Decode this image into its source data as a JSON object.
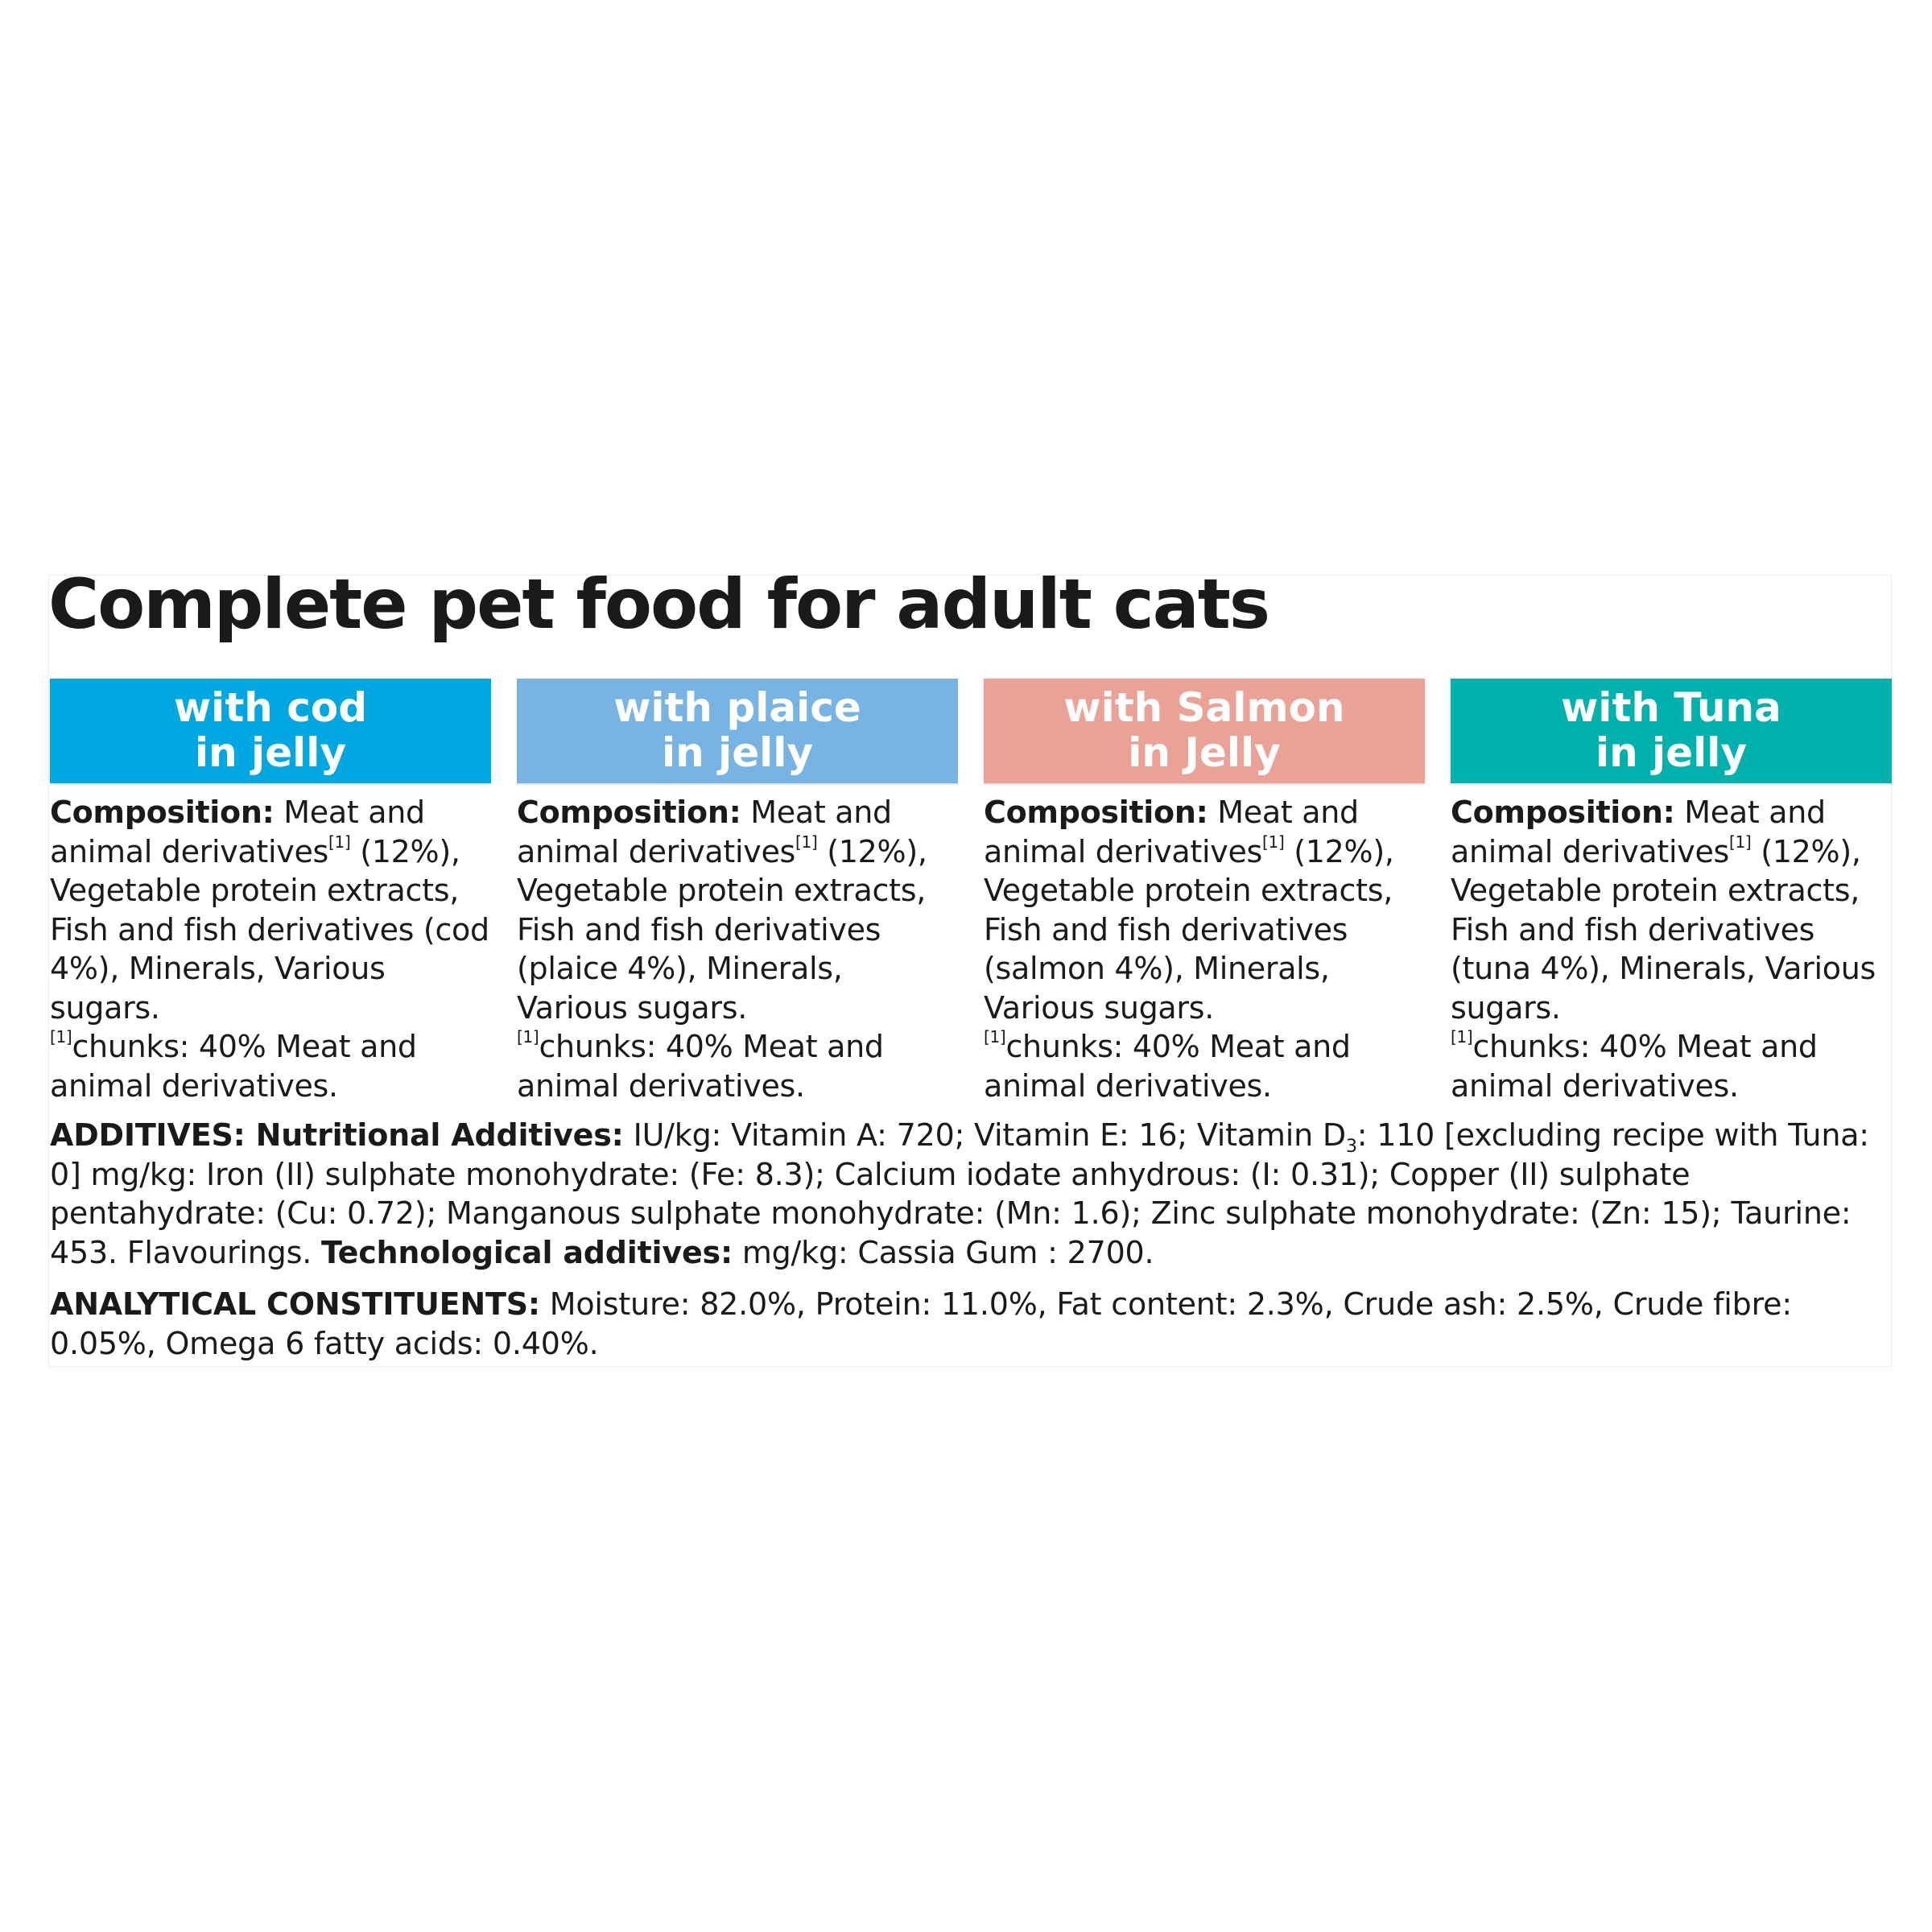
{
  "title": "Complete pet food for adult cats",
  "variants": [
    {
      "banner_line1": "with cod",
      "banner_line2": "in jelly",
      "color": "#00a7e0",
      "composition_label": "Composition:",
      "text_a": " Meat and animal derivatives",
      "footnote_ref": "[1]",
      "text_b": " (12%), Vegetable protein extracts, Fish and fish derivatives (cod 4%), Minerals, Various sugars.",
      "footnote_mark": "[1]",
      "footnote_text": "chunks: 40% Meat and animal derivatives."
    },
    {
      "banner_line1": "with plaice",
      "banner_line2": "in jelly",
      "color": "#77b4e3",
      "composition_label": "Composition:",
      "text_a": " Meat and animal derivatives",
      "footnote_ref": "[1]",
      "text_b": " (12%), Vegetable protein extracts, Fish and fish derivatives (plaice 4%), Minerals, Various sugars.",
      "footnote_mark": "[1]",
      "footnote_text": "chunks: 40% Meat and animal derivatives."
    },
    {
      "banner_line1": "with Salmon",
      "banner_line2": "in Jelly",
      "color": "#eaa196",
      "composition_label": "Composition:",
      "text_a": " Meat and animal derivatives",
      "footnote_ref": "[1]",
      "text_b": " (12%), Vegetable protein extracts, Fish and fish derivatives (salmon 4%), Minerals, Various sugars.",
      "footnote_mark": "[1]",
      "footnote_text": "chunks: 40% Meat and animal derivatives."
    },
    {
      "banner_line1": "with Tuna",
      "banner_line2": "in jelly",
      "color": "#00b1ad",
      "composition_label": "Composition:",
      "text_a": " Meat and animal derivatives",
      "footnote_ref": "[1]",
      "text_b": " (12%), Vegetable protein extracts, Fish and fish derivatives (tuna 4%), Minerals, Various sugars.",
      "footnote_mark": "[1]",
      "footnote_text": "chunks: 40% Meat and animal derivatives."
    }
  ],
  "additives": {
    "label": "ADDITIVES: Nutritional Additives:",
    "text_a": " IU/kg: Vitamin A: 720; Vitamin E: 16; Vitamin D",
    "sub": "3",
    "text_b": ": 110 [excluding recipe with Tuna: 0] mg/kg: Iron (II) sulphate monohydrate: (Fe: 8.3); Calcium iodate anhydrous: (I: 0.31); Copper (II) sulphate pentahydrate: (Cu: 0.72); Manganous sulphate monohydrate: (Mn: 1.6); Zinc sulphate monohydrate: (Zn: 15); Taurine: 453. Flavourings. ",
    "tech_label": "Technological additives:",
    "tech_text": " mg/kg: Cassia Gum : 2700."
  },
  "analytical": {
    "label": "ANALYTICAL CONSTITUENTS:",
    "text": " Moisture: 82.0%, Protein: 11.0%, Fat content: 2.3%, Crude ash: 2.5%, Crude fibre: 0.05%, Omega 6 fatty acids: 0.40%."
  }
}
